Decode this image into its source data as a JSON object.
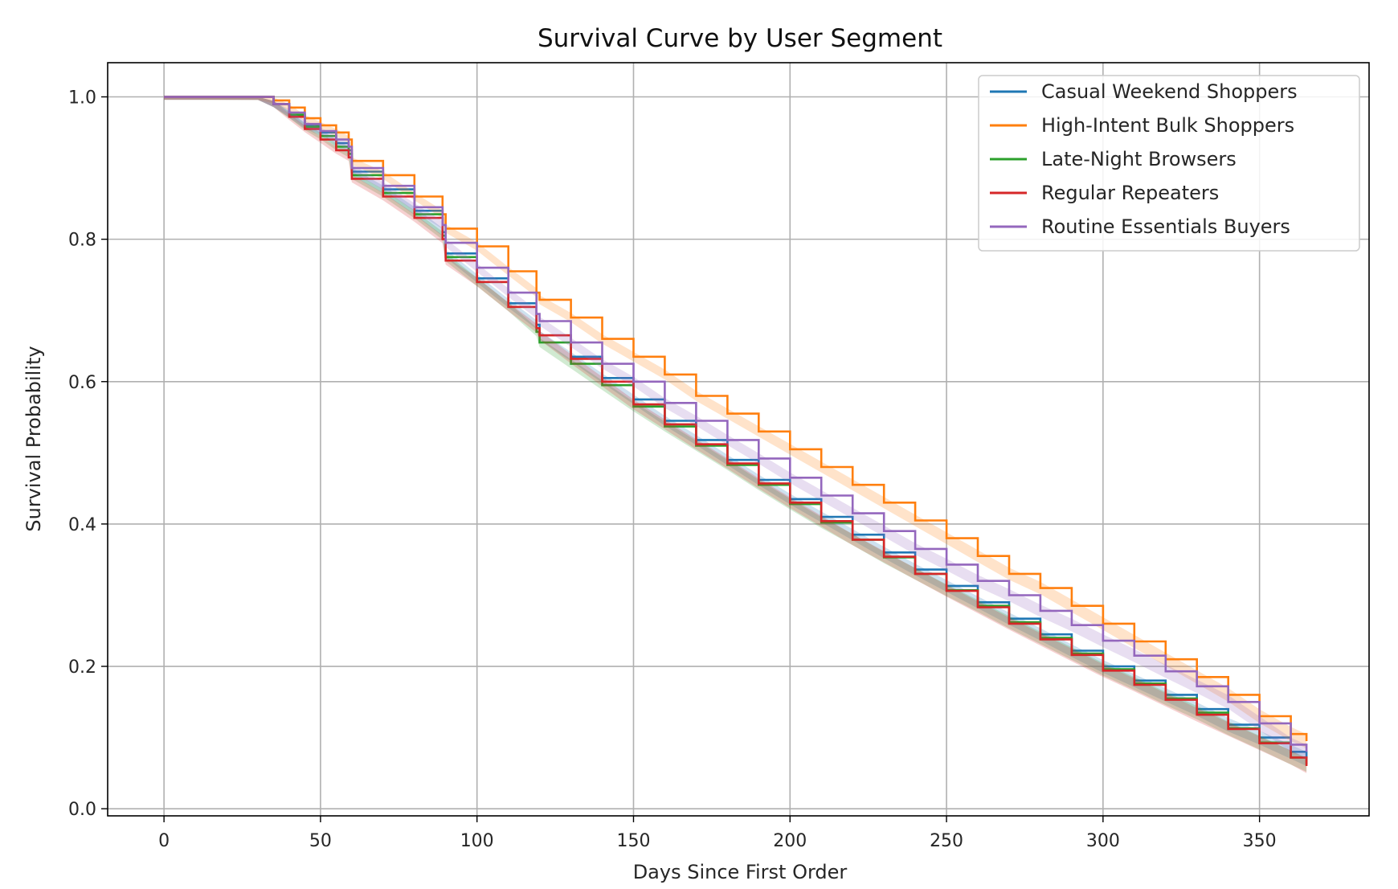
{
  "chart_data": {
    "type": "line",
    "title": "Survival Curve by User Segment",
    "xlabel": "Days Since First Order",
    "ylabel": "Survival Probability",
    "xlim": [
      -18,
      385
    ],
    "ylim": [
      -0.01,
      1.048
    ],
    "xticks": [
      0,
      50,
      100,
      150,
      200,
      250,
      300,
      350
    ],
    "yticks": [
      0.0,
      0.2,
      0.4,
      0.6,
      0.8,
      1.0
    ],
    "grid": true,
    "legend_position": "top-right",
    "step": true,
    "series": [
      {
        "name": "Casual Weekend Shoppers",
        "color": "#1f77b4",
        "points": [
          [
            0,
            1.0
          ],
          [
            30,
            1.0
          ],
          [
            35,
            0.99
          ],
          [
            40,
            0.975
          ],
          [
            45,
            0.96
          ],
          [
            50,
            0.95
          ],
          [
            55,
            0.935
          ],
          [
            59,
            0.925
          ],
          [
            60,
            0.895
          ],
          [
            70,
            0.87
          ],
          [
            80,
            0.84
          ],
          [
            89,
            0.81
          ],
          [
            90,
            0.78
          ],
          [
            100,
            0.745
          ],
          [
            110,
            0.71
          ],
          [
            119,
            0.68
          ],
          [
            120,
            0.665
          ],
          [
            130,
            0.635
          ],
          [
            140,
            0.605
          ],
          [
            150,
            0.575
          ],
          [
            160,
            0.545
          ],
          [
            170,
            0.518
          ],
          [
            180,
            0.49
          ],
          [
            190,
            0.462
          ],
          [
            200,
            0.435
          ],
          [
            210,
            0.41
          ],
          [
            220,
            0.385
          ],
          [
            230,
            0.36
          ],
          [
            240,
            0.336
          ],
          [
            250,
            0.313
          ],
          [
            260,
            0.29
          ],
          [
            270,
            0.267
          ],
          [
            280,
            0.245
          ],
          [
            290,
            0.222
          ],
          [
            300,
            0.2
          ],
          [
            310,
            0.18
          ],
          [
            320,
            0.16
          ],
          [
            330,
            0.14
          ],
          [
            340,
            0.118
          ],
          [
            350,
            0.1
          ],
          [
            360,
            0.08
          ],
          [
            365,
            0.07
          ]
        ]
      },
      {
        "name": "High-Intent Bulk Shoppers",
        "color": "#ff7f0e",
        "points": [
          [
            0,
            1.0
          ],
          [
            30,
            1.0
          ],
          [
            35,
            0.995
          ],
          [
            40,
            0.985
          ],
          [
            45,
            0.97
          ],
          [
            50,
            0.96
          ],
          [
            55,
            0.95
          ],
          [
            59,
            0.94
          ],
          [
            60,
            0.91
          ],
          [
            70,
            0.89
          ],
          [
            80,
            0.86
          ],
          [
            89,
            0.835
          ],
          [
            90,
            0.815
          ],
          [
            100,
            0.79
          ],
          [
            110,
            0.755
          ],
          [
            119,
            0.725
          ],
          [
            120,
            0.715
          ],
          [
            130,
            0.69
          ],
          [
            140,
            0.66
          ],
          [
            150,
            0.635
          ],
          [
            160,
            0.61
          ],
          [
            170,
            0.58
          ],
          [
            180,
            0.555
          ],
          [
            190,
            0.53
          ],
          [
            200,
            0.505
          ],
          [
            210,
            0.48
          ],
          [
            220,
            0.455
          ],
          [
            230,
            0.43
          ],
          [
            240,
            0.405
          ],
          [
            250,
            0.38
          ],
          [
            260,
            0.355
          ],
          [
            270,
            0.33
          ],
          [
            280,
            0.31
          ],
          [
            290,
            0.285
          ],
          [
            300,
            0.26
          ],
          [
            310,
            0.235
          ],
          [
            320,
            0.21
          ],
          [
            330,
            0.185
          ],
          [
            340,
            0.16
          ],
          [
            350,
            0.13
          ],
          [
            360,
            0.105
          ],
          [
            365,
            0.095
          ]
        ]
      },
      {
        "name": "Late-Night Browsers",
        "color": "#2ca02c",
        "points": [
          [
            0,
            1.0
          ],
          [
            30,
            1.0
          ],
          [
            35,
            0.99
          ],
          [
            40,
            0.975
          ],
          [
            45,
            0.958
          ],
          [
            50,
            0.945
          ],
          [
            55,
            0.93
          ],
          [
            59,
            0.92
          ],
          [
            60,
            0.89
          ],
          [
            70,
            0.865
          ],
          [
            80,
            0.835
          ],
          [
            89,
            0.805
          ],
          [
            90,
            0.775
          ],
          [
            100,
            0.74
          ],
          [
            110,
            0.705
          ],
          [
            119,
            0.67
          ],
          [
            120,
            0.655
          ],
          [
            130,
            0.625
          ],
          [
            140,
            0.595
          ],
          [
            150,
            0.565
          ],
          [
            160,
            0.537
          ],
          [
            170,
            0.51
          ],
          [
            180,
            0.483
          ],
          [
            190,
            0.455
          ],
          [
            200,
            0.428
          ],
          [
            210,
            0.402
          ],
          [
            220,
            0.378
          ],
          [
            230,
            0.353
          ],
          [
            240,
            0.33
          ],
          [
            250,
            0.307
          ],
          [
            260,
            0.285
          ],
          [
            270,
            0.262
          ],
          [
            280,
            0.24
          ],
          [
            290,
            0.218
          ],
          [
            300,
            0.196
          ],
          [
            310,
            0.176
          ],
          [
            320,
            0.155
          ],
          [
            330,
            0.135
          ],
          [
            340,
            0.113
          ],
          [
            350,
            0.093
          ],
          [
            360,
            0.072
          ],
          [
            365,
            0.062
          ]
        ]
      },
      {
        "name": "Regular Repeaters",
        "color": "#d62728",
        "points": [
          [
            0,
            1.0
          ],
          [
            30,
            1.0
          ],
          [
            35,
            0.99
          ],
          [
            40,
            0.972
          ],
          [
            45,
            0.955
          ],
          [
            50,
            0.94
          ],
          [
            55,
            0.925
          ],
          [
            59,
            0.915
          ],
          [
            60,
            0.885
          ],
          [
            70,
            0.86
          ],
          [
            80,
            0.83
          ],
          [
            89,
            0.8
          ],
          [
            90,
            0.77
          ],
          [
            100,
            0.74
          ],
          [
            110,
            0.705
          ],
          [
            119,
            0.675
          ],
          [
            120,
            0.665
          ],
          [
            130,
            0.632
          ],
          [
            140,
            0.6
          ],
          [
            150,
            0.568
          ],
          [
            160,
            0.54
          ],
          [
            170,
            0.512
          ],
          [
            180,
            0.485
          ],
          [
            190,
            0.457
          ],
          [
            200,
            0.43
          ],
          [
            210,
            0.404
          ],
          [
            220,
            0.378
          ],
          [
            230,
            0.354
          ],
          [
            240,
            0.33
          ],
          [
            250,
            0.306
          ],
          [
            260,
            0.283
          ],
          [
            270,
            0.26
          ],
          [
            280,
            0.238
          ],
          [
            290,
            0.216
          ],
          [
            300,
            0.194
          ],
          [
            310,
            0.174
          ],
          [
            320,
            0.153
          ],
          [
            330,
            0.132
          ],
          [
            340,
            0.112
          ],
          [
            350,
            0.092
          ],
          [
            360,
            0.072
          ],
          [
            365,
            0.06
          ]
        ]
      },
      {
        "name": "Routine Essentials Buyers",
        "color": "#9467bd",
        "points": [
          [
            0,
            1.0
          ],
          [
            30,
            1.0
          ],
          [
            35,
            0.99
          ],
          [
            40,
            0.978
          ],
          [
            45,
            0.962
          ],
          [
            50,
            0.952
          ],
          [
            55,
            0.94
          ],
          [
            59,
            0.93
          ],
          [
            60,
            0.9
          ],
          [
            70,
            0.875
          ],
          [
            80,
            0.845
          ],
          [
            89,
            0.82
          ],
          [
            90,
            0.795
          ],
          [
            100,
            0.76
          ],
          [
            110,
            0.725
          ],
          [
            119,
            0.695
          ],
          [
            120,
            0.685
          ],
          [
            130,
            0.655
          ],
          [
            140,
            0.625
          ],
          [
            150,
            0.6
          ],
          [
            160,
            0.57
          ],
          [
            170,
            0.545
          ],
          [
            180,
            0.518
          ],
          [
            190,
            0.492
          ],
          [
            200,
            0.465
          ],
          [
            210,
            0.44
          ],
          [
            220,
            0.415
          ],
          [
            230,
            0.39
          ],
          [
            240,
            0.365
          ],
          [
            250,
            0.343
          ],
          [
            260,
            0.32
          ],
          [
            270,
            0.3
          ],
          [
            280,
            0.278
          ],
          [
            290,
            0.258
          ],
          [
            300,
            0.236
          ],
          [
            310,
            0.215
          ],
          [
            320,
            0.193
          ],
          [
            330,
            0.172
          ],
          [
            340,
            0.15
          ],
          [
            350,
            0.12
          ],
          [
            360,
            0.09
          ],
          [
            365,
            0.08
          ]
        ]
      }
    ]
  }
}
